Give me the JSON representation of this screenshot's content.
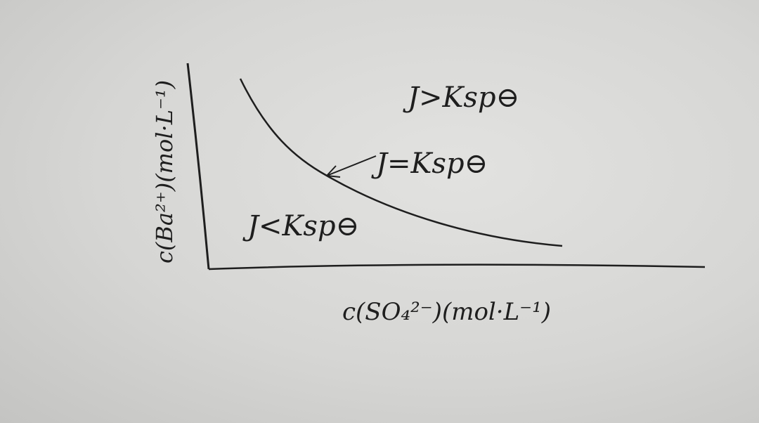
{
  "diagram": {
    "y_axis_label": "c(Ba²⁺)(mol·L⁻¹)",
    "x_axis_label": "c(SO₄²⁻)(mol·L⁻¹)",
    "region_above": "J>Ksp⊖",
    "on_curve": "J=Ksp⊖",
    "region_below": "J<Ksp⊖",
    "ink_color": "#1e1e1e",
    "paper_color": "#d8d8d6"
  }
}
